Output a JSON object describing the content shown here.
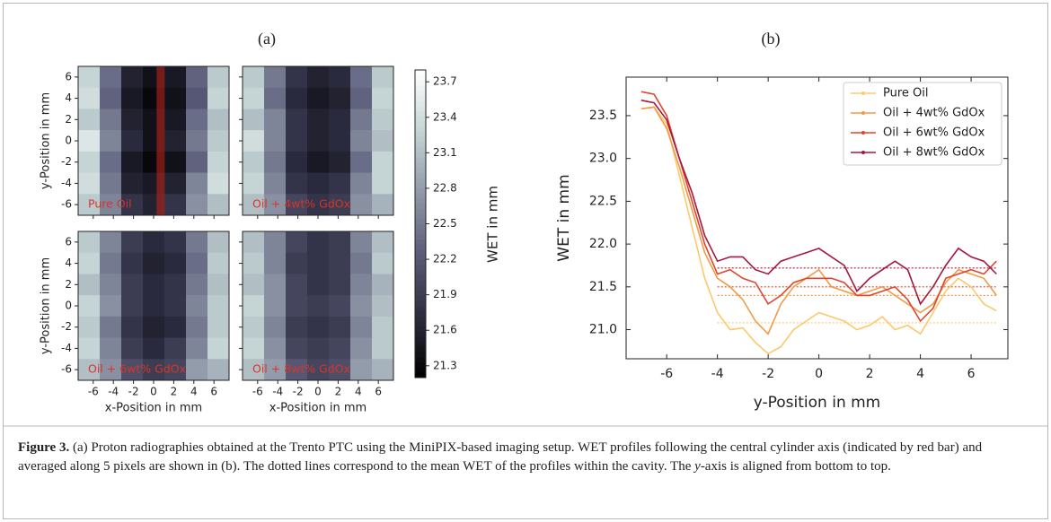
{
  "chart_data": [
    {
      "type": "heatmap",
      "title": "(a)",
      "xlabel": "x-Position in mm",
      "ylabel": "y-Position in mm",
      "x": [
        -6,
        -4,
        -2,
        0,
        2,
        4,
        6
      ],
      "y": [
        6,
        4,
        2,
        0,
        -2,
        -4,
        -6
      ],
      "xlim": [
        -7.5,
        7.5
      ],
      "ylim": [
        -7,
        7
      ],
      "xticks": [
        -6,
        -4,
        -2,
        0,
        2,
        4,
        6
      ],
      "yticks": [
        -6,
        -4,
        -2,
        0,
        2,
        4,
        6
      ],
      "label_color": "#d8342a",
      "highlight": {
        "color": "#c8281e",
        "xrange": [
          0.3,
          1.1
        ]
      },
      "panels": [
        {
          "name": "Pure Oil",
          "values": [
            [
              23.3,
              22.4,
              21.6,
              21.4,
              21.5,
              22.3,
              23.2
            ],
            [
              23.4,
              22.3,
              21.5,
              21.3,
              21.4,
              22.2,
              23.3
            ],
            [
              23.2,
              22.5,
              21.6,
              21.4,
              21.5,
              22.4,
              23.1
            ],
            [
              23.5,
              22.6,
              21.7,
              21.4,
              21.6,
              22.5,
              23.2
            ],
            [
              23.3,
              22.4,
              21.5,
              21.3,
              21.4,
              22.3,
              23.3
            ],
            [
              23.4,
              22.5,
              21.6,
              21.5,
              21.6,
              22.6,
              23.4
            ],
            [
              23.2,
              22.6,
              21.8,
              21.6,
              21.8,
              22.7,
              23.1
            ]
          ]
        },
        {
          "name": "Oil + 4wt% GdOx",
          "values": [
            [
              23.2,
              22.5,
              21.8,
              21.6,
              21.7,
              22.4,
              23.2
            ],
            [
              23.3,
              22.4,
              21.7,
              21.5,
              21.6,
              22.3,
              23.3
            ],
            [
              23.1,
              22.6,
              21.8,
              21.6,
              21.7,
              22.5,
              23.2
            ],
            [
              23.4,
              22.6,
              21.8,
              21.6,
              21.7,
              22.6,
              23.1
            ],
            [
              23.2,
              22.5,
              21.7,
              21.5,
              21.6,
              22.4,
              23.3
            ],
            [
              23.3,
              22.6,
              21.8,
              21.7,
              21.8,
              22.6,
              23.3
            ],
            [
              23.1,
              22.7,
              22.0,
              21.8,
              21.9,
              22.7,
              23.0
            ]
          ]
        },
        {
          "name": "Oil + 6wt% GdOx",
          "values": [
            [
              23.2,
              22.6,
              21.9,
              21.7,
              21.8,
              22.5,
              23.1
            ],
            [
              23.3,
              22.5,
              21.8,
              21.6,
              21.7,
              22.4,
              23.2
            ],
            [
              23.1,
              22.6,
              21.9,
              21.7,
              21.8,
              22.5,
              23.1
            ],
            [
              23.3,
              22.7,
              21.9,
              21.7,
              21.8,
              22.6,
              23.2
            ],
            [
              23.2,
              22.5,
              21.8,
              21.6,
              21.7,
              22.5,
              23.2
            ],
            [
              23.3,
              22.6,
              21.9,
              21.7,
              21.9,
              22.6,
              23.3
            ],
            [
              23.1,
              22.7,
              22.1,
              21.9,
              22.0,
              22.8,
              23.0
            ]
          ]
        },
        {
          "name": "Oil + 8wt% GdOx",
          "values": [
            [
              23.1,
              22.6,
              22.0,
              21.8,
              21.9,
              22.6,
              23.1
            ],
            [
              23.2,
              22.6,
              21.9,
              21.8,
              21.9,
              22.5,
              23.2
            ],
            [
              23.1,
              22.7,
              22.0,
              21.8,
              21.9,
              22.6,
              23.0
            ],
            [
              23.3,
              22.7,
              22.0,
              21.9,
              22.0,
              22.7,
              23.1
            ],
            [
              23.2,
              22.6,
              21.9,
              21.8,
              21.9,
              22.6,
              23.2
            ],
            [
              23.3,
              22.7,
              22.0,
              21.9,
              22.0,
              22.7,
              23.2
            ],
            [
              23.1,
              22.8,
              22.2,
              22.0,
              22.1,
              22.8,
              23.0
            ]
          ]
        }
      ],
      "colorbar": {
        "label": "WET in mm",
        "clim": [
          21.2,
          23.8
        ],
        "ticks": [
          21.3,
          21.6,
          21.9,
          22.2,
          22.5,
          22.8,
          23.1,
          23.4,
          23.7
        ],
        "colormap": [
          "#000000",
          "#2c2c40",
          "#5a5b78",
          "#8f97a8",
          "#c3d3d3",
          "#ffffff"
        ]
      }
    },
    {
      "type": "line",
      "title": "(b)",
      "xlabel": "y-Position in mm",
      "ylabel": "WET in mm",
      "xlim": [
        -7.6,
        7.45
      ],
      "ylim": [
        20.66,
        23.95
      ],
      "xticks": [
        -6,
        -4,
        -2,
        0,
        2,
        4,
        6
      ],
      "yticks": [
        {
          "value": 21,
          "label": "21.0"
        },
        21.5,
        {
          "value": 22,
          "label": "22.0"
        },
        22.5,
        {
          "value": 23,
          "label": "23.0"
        },
        23.5
      ],
      "legend": "upper right",
      "cavity_xrange": [
        -4,
        7
      ],
      "x": [
        -7,
        -6.5,
        -6,
        -5.5,
        -5,
        -4.5,
        -4,
        -3.5,
        -3,
        -2.5,
        -2,
        -1.5,
        -1,
        -0.5,
        0,
        0.5,
        1,
        1.5,
        2,
        2.5,
        3,
        3.5,
        4,
        4.5,
        5,
        5.5,
        6,
        6.5,
        7
      ],
      "series": [
        {
          "name": "Pure Oil",
          "color": "#fdc86a",
          "mean": 21.08,
          "values": [
            23.58,
            23.6,
            23.4,
            22.8,
            22.2,
            21.6,
            21.2,
            21.0,
            21.02,
            20.85,
            20.72,
            20.8,
            21.0,
            21.1,
            21.2,
            21.15,
            21.1,
            21.0,
            21.05,
            21.15,
            21.0,
            21.05,
            20.95,
            21.2,
            21.45,
            21.6,
            21.5,
            21.3,
            21.22
          ]
        },
        {
          "name": "Oil + 4wt% GdOx",
          "color": "#f29a48",
          "mean": 21.4,
          "values": [
            23.58,
            23.6,
            23.35,
            22.9,
            22.4,
            21.9,
            21.6,
            21.5,
            21.35,
            21.1,
            20.95,
            21.3,
            21.5,
            21.6,
            21.7,
            21.5,
            21.45,
            21.4,
            21.45,
            21.5,
            21.4,
            21.3,
            21.2,
            21.3,
            21.55,
            21.7,
            21.65,
            21.6,
            21.4
          ]
        },
        {
          "name": "Oil + 6wt% GdOx",
          "color": "#e0452d",
          "mean": 21.5,
          "values": [
            23.78,
            23.75,
            23.5,
            23.0,
            22.5,
            22.0,
            21.65,
            21.7,
            21.6,
            21.55,
            21.3,
            21.4,
            21.55,
            21.6,
            21.6,
            21.6,
            21.55,
            21.4,
            21.4,
            21.45,
            21.5,
            21.35,
            21.1,
            21.25,
            21.6,
            21.65,
            21.7,
            21.65,
            21.8
          ]
        },
        {
          "name": "Oil + 8wt% GdOx",
          "color": "#a3183f",
          "mean": 21.72,
          "values": [
            23.68,
            23.65,
            23.45,
            23.0,
            22.6,
            22.1,
            21.8,
            21.85,
            21.85,
            21.7,
            21.65,
            21.8,
            21.85,
            21.9,
            21.95,
            21.85,
            21.75,
            21.45,
            21.6,
            21.7,
            21.8,
            21.7,
            21.3,
            21.5,
            21.75,
            21.95,
            21.85,
            21.8,
            21.65
          ]
        }
      ]
    }
  ],
  "caption": {
    "label": "Figure 3.",
    "text": " (a) Proton radiographies obtained at the Trento PTC using the MiniPIX-based imaging setup. WET profiles following the central cylinder axis (indicated by red bar) and averaged along 5 pixels are shown in (b). The dotted lines correspond to the mean WET of the profiles within the cavity. The ",
    "italic": "y",
    "tail": "-axis is aligned from bottom to top."
  }
}
